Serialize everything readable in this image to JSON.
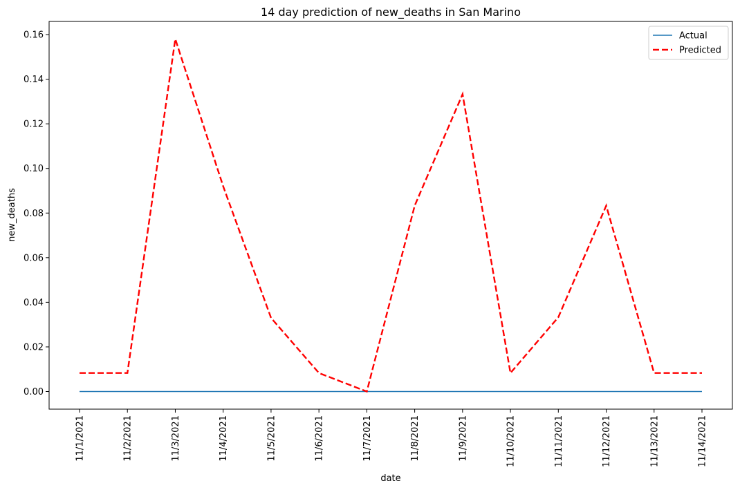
{
  "chart_data": {
    "type": "line",
    "title": "14 day prediction of new_deaths in San Marino",
    "xlabel": "date",
    "ylabel": "new_deaths",
    "categories": [
      "11/1/2021",
      "11/2/2021",
      "11/3/2021",
      "11/4/2021",
      "11/5/2021",
      "11/6/2021",
      "11/7/2021",
      "11/8/2021",
      "11/9/2021",
      "11/10/2021",
      "11/11/2021",
      "11/12/2021",
      "11/13/2021",
      "11/14/2021"
    ],
    "ylim": [
      -0.0079,
      0.1659
    ],
    "yticks": [
      0.0,
      0.02,
      0.04,
      0.06,
      0.08,
      0.1,
      0.12,
      0.14,
      0.16
    ],
    "ytick_labels": [
      "0.00",
      "0.02",
      "0.04",
      "0.06",
      "0.08",
      "0.10",
      "0.12",
      "0.14",
      "0.16"
    ],
    "grid": false,
    "legend_position": "top-right",
    "series": [
      {
        "name": "Actual",
        "color": "#1f77b4",
        "style": "solid",
        "values": [
          0,
          0,
          0,
          0,
          0,
          0,
          0,
          0,
          0,
          0,
          0,
          0,
          0,
          0
        ]
      },
      {
        "name": "Predicted",
        "color": "#ff0000",
        "style": "dashed",
        "values": [
          0.0083,
          0.0083,
          0.158,
          0.092,
          0.033,
          0.0083,
          0.0,
          0.0833,
          0.1333,
          0.0083,
          0.0333,
          0.0833,
          0.0083,
          0.0083
        ]
      }
    ]
  }
}
